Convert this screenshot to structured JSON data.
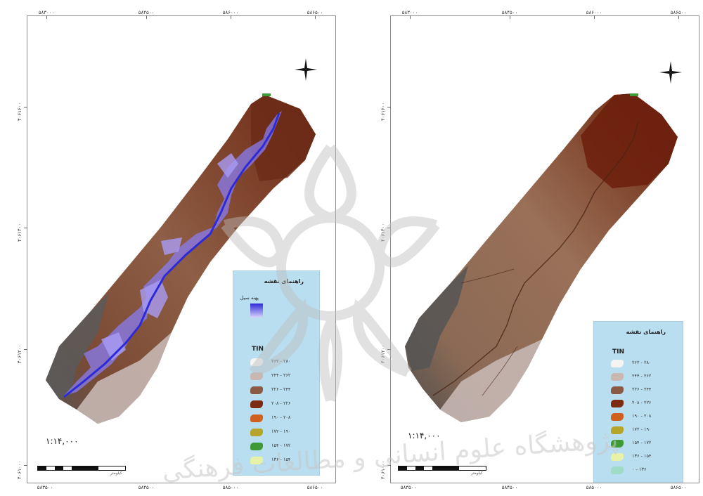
{
  "maps": {
    "left": {
      "top_ticks": [
        "۵۸۳۰۰۰",
        "۵۸۴۵۰۰",
        "۵۸۶۰۰۰",
        "۵۸۶۵۰۰"
      ],
      "bottom_ticks": [
        "۵۸۳۵۰۰",
        "۵۸۴۵۰۰",
        "۵۸۵۰۰۰",
        "۵۸۶۵۰۰"
      ],
      "side_ticks": [
        "۴۰۶۱۶۰۰",
        "۴۰۶۱۴۰۰",
        "۴۰۶۱۲۰۰",
        "۴۰۶۱۰۰۰"
      ],
      "legend": {
        "title": "راهنمای نقشه",
        "flood_label": "پهنه سیل",
        "tin_label": "TIN",
        "items": [
          {
            "label": "۲۶۲ - ۲۸۰",
            "color": "#f4f4f2"
          },
          {
            "label": "۲۴۴ - ۲۶۲",
            "color": "#c9b7b0"
          },
          {
            "label": "۲۲۶ - ۲۴۴",
            "color": "#8a5a44"
          },
          {
            "label": "۲۰۸ - ۲۲۶",
            "color": "#7c2a12"
          },
          {
            "label": "۱۹۰ - ۲۰۸",
            "color": "#d0601f"
          },
          {
            "label": "۱۷۲ - ۱۹۰",
            "color": "#b5a52a"
          },
          {
            "label": "۱۵۴ - ۱۷۲",
            "color": "#3d9a36"
          },
          {
            "label": "۱۳۶ - ۱۵۴",
            "color": "#e8f2a6"
          }
        ]
      },
      "scale": "۱:۱۴,۰۰۰",
      "unit_label": "کیلومتر"
    },
    "right": {
      "top_ticks": [
        "۵۸۳۰۰۰",
        "۵۸۴۵۰۰",
        "۵۸۶۰۰۰",
        "۵۸۶۵۰۰"
      ],
      "bottom_ticks": [
        "۵۸۳۵۰۰",
        "۵۸۴۵۰۰",
        "۵۸۵۰۰۰",
        "۵۸۶۵۰۰"
      ],
      "side_ticks": [
        "۴۰۶۱۶۰۰",
        "۴۰۶۱۴۰۰",
        "۴۰۶۱۲۰۰",
        "۴۰۶۱۰۰۰"
      ],
      "legend": {
        "title": "راهنمای نقشه",
        "tin_label": "TIN",
        "items": [
          {
            "label": "۲۶۲ - ۲۸۰",
            "color": "#f4f4f2"
          },
          {
            "label": "۲۴۴ - ۲۶۲",
            "color": "#c9b7b0"
          },
          {
            "label": "۲۲۶ - ۲۴۴",
            "color": "#8a5a44"
          },
          {
            "label": "۲۰۸ - ۲۲۶",
            "color": "#7c2a12"
          },
          {
            "label": "۱۹۰ - ۲۰۸",
            "color": "#d0601f"
          },
          {
            "label": "۱۷۲ - ۱۹۰",
            "color": "#b5a52a"
          },
          {
            "label": "۱۵۴ - ۱۷۲",
            "color": "#3d9a36"
          },
          {
            "label": "۱۳۶ - ۱۵۴",
            "color": "#e8f2a6"
          },
          {
            "label": "۰ - ۱۳۶",
            "color": "#9fdcc8"
          }
        ]
      },
      "scale": "۱:۱۴,۰۰۰",
      "unit_label": "کیلومتر"
    }
  },
  "watermark_text": "پژوهشگاه علوم انسانی و مطالعات فرهنگی",
  "colors": {
    "terrain_dark": "#6e3a22",
    "terrain_mid": "#8a5a44",
    "terrain_light": "#a6755a",
    "flood": "#8a7cf0",
    "channel": "#2d2bd8",
    "legend_bg": "#b9def0"
  }
}
